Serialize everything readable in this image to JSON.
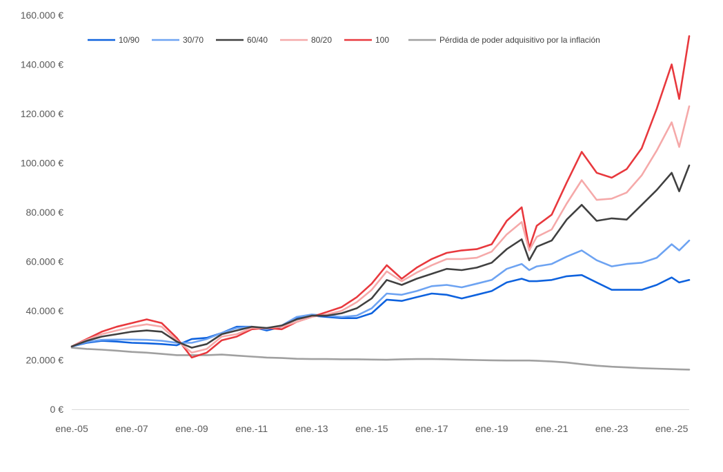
{
  "chart_data": {
    "type": "line",
    "title": "",
    "xlabel": "",
    "ylabel": "",
    "x_ticks": [
      "ene.-05",
      "ene.-07",
      "ene.-09",
      "ene.-11",
      "ene.-13",
      "ene.-15",
      "ene.-17",
      "ene.-19",
      "ene.-21",
      "ene.-23",
      "ene.-25"
    ],
    "y_ticks": [
      "0 €",
      "20.000 €",
      "40.000 €",
      "60.000 €",
      "80.000 €",
      "100.000 €",
      "120.000 €",
      "140.000 €",
      "160.000 €"
    ],
    "ylim": [
      0,
      160000
    ],
    "xlim": [
      "2005-01",
      "2025-08"
    ],
    "grid": false,
    "legend_position": "top",
    "colors": {
      "10/90": "#0e62de",
      "30/70": "#6da3f2",
      "60/40": "#404040",
      "80/20": "#f5a9a9",
      "100": "#e8383d",
      "inflation": "#a0a0a0"
    },
    "x": [
      "2005-01",
      "2005-07",
      "2006-01",
      "2006-07",
      "2007-01",
      "2007-07",
      "2008-01",
      "2008-07",
      "2009-01",
      "2009-07",
      "2010-01",
      "2010-07",
      "2011-01",
      "2011-07",
      "2012-01",
      "2012-07",
      "2013-01",
      "2013-07",
      "2014-01",
      "2014-07",
      "2015-01",
      "2015-07",
      "2016-01",
      "2016-07",
      "2017-01",
      "2017-07",
      "2018-01",
      "2018-07",
      "2019-01",
      "2019-07",
      "2020-01",
      "2020-04",
      "2020-07",
      "2021-01",
      "2021-07",
      "2022-01",
      "2022-07",
      "2023-01",
      "2023-07",
      "2024-01",
      "2024-07",
      "2025-01",
      "2025-04",
      "2025-08"
    ],
    "series": [
      {
        "name": "10/90",
        "values": [
          25500,
          27000,
          27800,
          27500,
          27000,
          26800,
          26500,
          26000,
          28500,
          29000,
          31000,
          33500,
          33500,
          32000,
          33500,
          37000,
          38000,
          37500,
          37000,
          37000,
          39000,
          44500,
          44000,
          45500,
          47000,
          46500,
          45000,
          46500,
          48000,
          51500,
          53000,
          52000,
          52000,
          52500,
          54000,
          54500,
          51500,
          48500,
          48500,
          48500,
          50500,
          53500,
          51500,
          52500
        ]
      },
      {
        "name": "30/70",
        "values": [
          25500,
          27300,
          28200,
          28300,
          28300,
          28200,
          27800,
          27000,
          27000,
          28500,
          31000,
          33000,
          33500,
          32500,
          34000,
          37500,
          38500,
          38000,
          37500,
          38000,
          41000,
          47000,
          46500,
          48000,
          50000,
          50500,
          49500,
          51000,
          52500,
          57000,
          59000,
          56500,
          58000,
          59000,
          62000,
          64500,
          60500,
          58000,
          59000,
          59500,
          61500,
          67000,
          64500,
          68500
        ]
      },
      {
        "name": "60/40",
        "values": [
          25500,
          27800,
          29500,
          30500,
          31500,
          32000,
          31500,
          27500,
          25000,
          26500,
          30500,
          32000,
          33500,
          33000,
          34000,
          36500,
          38000,
          38000,
          39000,
          41000,
          45000,
          52500,
          50500,
          53000,
          55000,
          57000,
          56500,
          57500,
          59500,
          65000,
          69000,
          60500,
          66000,
          68500,
          77000,
          83000,
          76500,
          77500,
          77000,
          83000,
          89000,
          96000,
          88500,
          99000
        ]
      },
      {
        "name": "80/20",
        "values": [
          25500,
          28200,
          30500,
          32000,
          33500,
          34500,
          33500,
          28000,
          23000,
          24500,
          29500,
          30500,
          33000,
          33000,
          33500,
          35500,
          37500,
          38500,
          40000,
          43500,
          48500,
          56000,
          52000,
          55500,
          58500,
          61000,
          61000,
          61500,
          64000,
          71000,
          76000,
          64500,
          70000,
          73000,
          83500,
          93000,
          85000,
          85500,
          88000,
          95000,
          105000,
          116500,
          106500,
          123000
        ]
      },
      {
        "name": "100",
        "values": [
          25500,
          28500,
          31500,
          33500,
          35000,
          36500,
          35000,
          29000,
          21000,
          23000,
          28000,
          29500,
          32500,
          33000,
          32500,
          35500,
          37500,
          39500,
          41500,
          45500,
          51000,
          58500,
          53000,
          57500,
          61000,
          63500,
          64500,
          65000,
          67000,
          76500,
          82000,
          65500,
          74500,
          79000,
          92000,
          104500,
          96000,
          94000,
          97500,
          106000,
          122000,
          140000,
          126000,
          151500
        ]
      },
      {
        "name": "Pérdida de poder adquisitivo por la inflación",
        "values": [
          25000,
          24500,
          24200,
          23800,
          23300,
          23000,
          22500,
          22000,
          22000,
          22000,
          22200,
          21800,
          21400,
          21000,
          20800,
          20500,
          20400,
          20400,
          20300,
          20300,
          20200,
          20100,
          20300,
          20400,
          20400,
          20300,
          20100,
          20000,
          19900,
          19800,
          19800,
          19800,
          19700,
          19400,
          19000,
          18300,
          17700,
          17300,
          17000,
          16700,
          16500,
          16300,
          16200,
          16100
        ]
      }
    ]
  }
}
